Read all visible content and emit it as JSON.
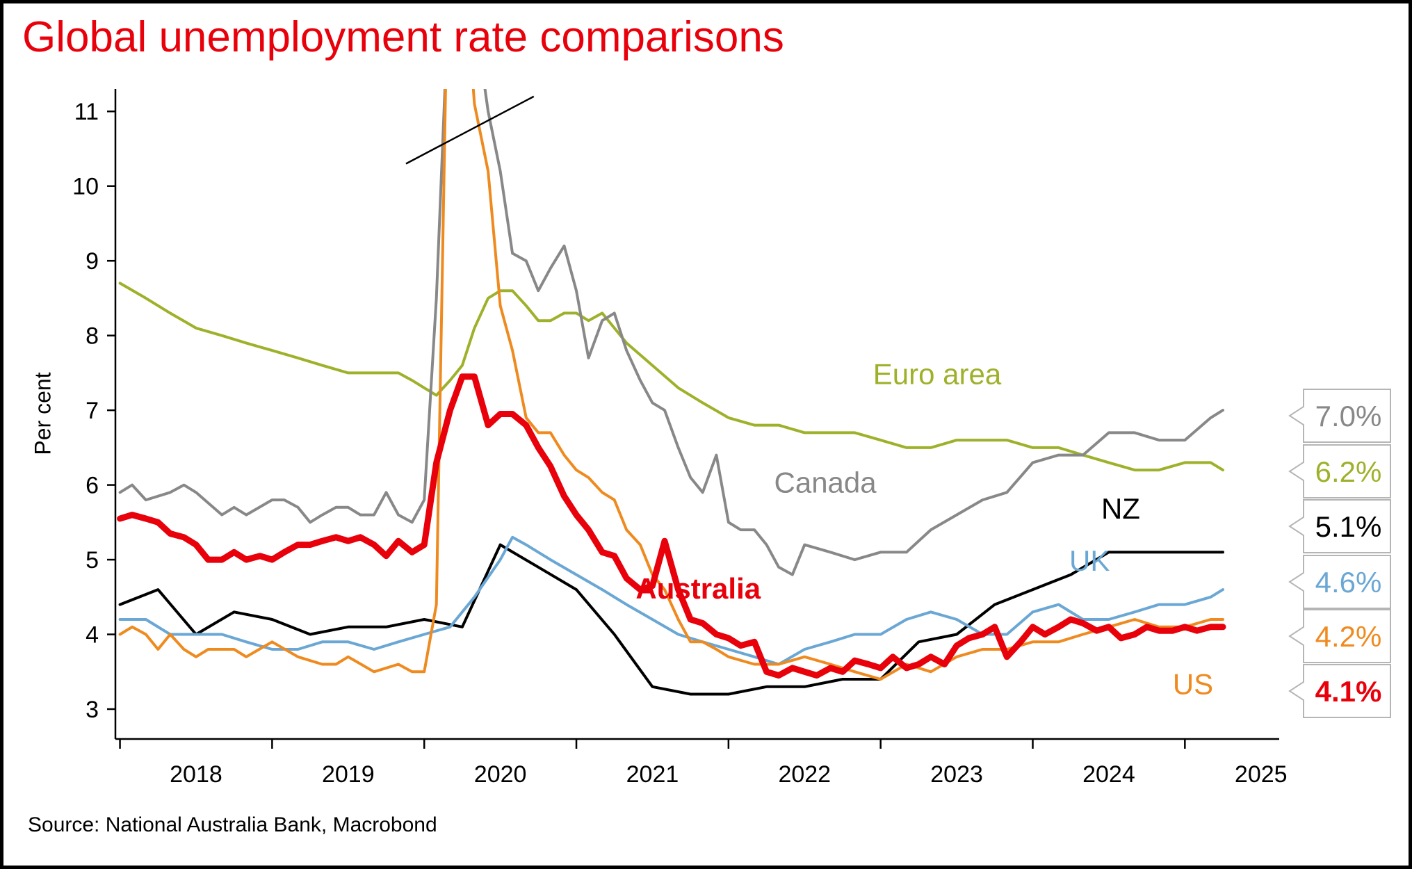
{
  "title": "Global unemployment rate comparisons",
  "source": "Source: National Australia Bank, Macrobond",
  "chart_data": {
    "type": "line",
    "title": "Global unemployment rate comparisons",
    "xlabel": "",
    "ylabel": "Per cent",
    "ylim": [
      2.6,
      11.3
    ],
    "xlim": [
      2017.97,
      2025.62
    ],
    "yticks": [
      3,
      4,
      5,
      6,
      7,
      8,
      9,
      10,
      11
    ],
    "xtick_labels": [
      "2018",
      "2019",
      "2020",
      "2021",
      "2022",
      "2023",
      "2024",
      "2025"
    ],
    "axis_break": "y-axis truncated above 11",
    "grid": false,
    "legend": "none (series labelled directly; latest values in boxes on right)",
    "series": [
      {
        "name": "Euro area",
        "color": "#9fb12a",
        "end_label": "6.2%",
        "x": [
          2018.0,
          2018.17,
          2018.33,
          2018.5,
          2018.67,
          2018.83,
          2019.0,
          2019.17,
          2019.33,
          2019.5,
          2019.67,
          2019.83,
          2019.92,
          2020.0,
          2020.08,
          2020.17,
          2020.25,
          2020.33,
          2020.42,
          2020.5,
          2020.58,
          2020.67,
          2020.75,
          2020.83,
          2020.92,
          2021.0,
          2021.08,
          2021.17,
          2021.25,
          2021.33,
          2021.5,
          2021.67,
          2021.83,
          2022.0,
          2022.17,
          2022.33,
          2022.5,
          2022.67,
          2022.83,
          2023.0,
          2023.17,
          2023.33,
          2023.5,
          2023.67,
          2023.83,
          2024.0,
          2024.17,
          2024.33,
          2024.5,
          2024.67,
          2024.83,
          2025.0,
          2025.17,
          2025.25
        ],
        "values": [
          8.7,
          8.5,
          8.3,
          8.1,
          8.0,
          7.9,
          7.8,
          7.7,
          7.6,
          7.5,
          7.5,
          7.5,
          7.4,
          7.3,
          7.2,
          7.4,
          7.6,
          8.1,
          8.5,
          8.6,
          8.6,
          8.4,
          8.2,
          8.2,
          8.3,
          8.3,
          8.2,
          8.3,
          8.1,
          7.9,
          7.6,
          7.3,
          7.1,
          6.9,
          6.8,
          6.8,
          6.7,
          6.7,
          6.7,
          6.6,
          6.5,
          6.5,
          6.6,
          6.6,
          6.6,
          6.5,
          6.5,
          6.4,
          6.3,
          6.2,
          6.2,
          6.3,
          6.3,
          6.2
        ]
      },
      {
        "name": "Canada",
        "color": "#888888",
        "end_label": "7.0%",
        "x": [
          2018.0,
          2018.08,
          2018.17,
          2018.33,
          2018.42,
          2018.5,
          2018.67,
          2018.75,
          2018.83,
          2019.0,
          2019.08,
          2019.17,
          2019.25,
          2019.33,
          2019.42,
          2019.5,
          2019.58,
          2019.67,
          2019.75,
          2019.83,
          2019.92,
          2020.0,
          2020.08,
          2020.17,
          2020.25,
          2020.33,
          2020.42,
          2020.5,
          2020.58,
          2020.67,
          2020.75,
          2020.83,
          2020.92,
          2021.0,
          2021.08,
          2021.17,
          2021.25,
          2021.33,
          2021.42,
          2021.5,
          2021.58,
          2021.67,
          2021.75,
          2021.83,
          2021.92,
          2022.0,
          2022.08,
          2022.17,
          2022.25,
          2022.33,
          2022.42,
          2022.5,
          2022.67,
          2022.83,
          2023.0,
          2023.17,
          2023.33,
          2023.5,
          2023.67,
          2023.83,
          2024.0,
          2024.17,
          2024.33,
          2024.5,
          2024.67,
          2024.83,
          2025.0,
          2025.17,
          2025.25
        ],
        "values": [
          5.9,
          6.0,
          5.8,
          5.9,
          6.0,
          5.9,
          5.6,
          5.7,
          5.6,
          5.8,
          5.8,
          5.7,
          5.5,
          5.6,
          5.7,
          5.7,
          5.6,
          5.6,
          5.9,
          5.6,
          5.5,
          5.8,
          8.5,
          13.0,
          13.7,
          12.3,
          11.0,
          10.2,
          9.1,
          9.0,
          8.6,
          8.9,
          9.2,
          8.6,
          7.7,
          8.2,
          8.3,
          7.8,
          7.4,
          7.1,
          7.0,
          6.5,
          6.1,
          5.9,
          6.4,
          5.5,
          5.4,
          5.4,
          5.2,
          4.9,
          4.8,
          5.2,
          5.1,
          5.0,
          5.1,
          5.1,
          5.4,
          5.6,
          5.8,
          5.9,
          6.3,
          6.4,
          6.4,
          6.7,
          6.7,
          6.6,
          6.6,
          6.9,
          7.0
        ]
      },
      {
        "name": "NZ",
        "color": "#000000",
        "end_label": "5.1%",
        "x": [
          2018.0,
          2018.25,
          2018.5,
          2018.75,
          2019.0,
          2019.25,
          2019.5,
          2019.75,
          2020.0,
          2020.25,
          2020.5,
          2020.75,
          2021.0,
          2021.25,
          2021.5,
          2021.75,
          2022.0,
          2022.25,
          2022.5,
          2022.75,
          2023.0,
          2023.25,
          2023.5,
          2023.75,
          2024.0,
          2024.25,
          2024.5,
          2024.75,
          2025.0,
          2025.25
        ],
        "values": [
          4.4,
          4.6,
          4.0,
          4.3,
          4.2,
          4.0,
          4.1,
          4.1,
          4.2,
          4.1,
          5.2,
          4.9,
          4.6,
          4.0,
          3.3,
          3.2,
          3.2,
          3.3,
          3.3,
          3.4,
          3.4,
          3.9,
          4.0,
          4.4,
          4.6,
          4.8,
          5.1,
          5.1,
          5.1,
          5.1
        ]
      },
      {
        "name": "UK",
        "color": "#6aa7d4",
        "end_label": "4.6%",
        "x": [
          2018.0,
          2018.17,
          2018.33,
          2018.5,
          2018.67,
          2018.83,
          2019.0,
          2019.17,
          2019.33,
          2019.5,
          2019.67,
          2019.83,
          2020.0,
          2020.17,
          2020.33,
          2020.5,
          2020.58,
          2020.67,
          2020.83,
          2021.0,
          2021.17,
          2021.33,
          2021.5,
          2021.67,
          2021.83,
          2022.0,
          2022.17,
          2022.33,
          2022.5,
          2022.67,
          2022.83,
          2023.0,
          2023.17,
          2023.33,
          2023.5,
          2023.67,
          2023.83,
          2024.0,
          2024.17,
          2024.33,
          2024.5,
          2024.67,
          2024.83,
          2025.0,
          2025.17,
          2025.25
        ],
        "values": [
          4.2,
          4.2,
          4.0,
          4.0,
          4.0,
          3.9,
          3.8,
          3.8,
          3.9,
          3.9,
          3.8,
          3.9,
          4.0,
          4.1,
          4.5,
          5.0,
          5.3,
          5.2,
          5.0,
          4.8,
          4.6,
          4.4,
          4.2,
          4.0,
          3.9,
          3.8,
          3.7,
          3.6,
          3.8,
          3.9,
          4.0,
          4.0,
          4.2,
          4.3,
          4.2,
          4.0,
          4.0,
          4.3,
          4.4,
          4.2,
          4.2,
          4.3,
          4.4,
          4.4,
          4.5,
          4.6
        ]
      },
      {
        "name": "US",
        "color": "#ef8a1f",
        "end_label": "4.2%",
        "x": [
          2018.0,
          2018.08,
          2018.17,
          2018.25,
          2018.33,
          2018.42,
          2018.5,
          2018.58,
          2018.67,
          2018.75,
          2018.83,
          2019.0,
          2019.17,
          2019.33,
          2019.42,
          2019.5,
          2019.67,
          2019.83,
          2019.92,
          2020.0,
          2020.08,
          2020.17,
          2020.25,
          2020.33,
          2020.42,
          2020.5,
          2020.58,
          2020.67,
          2020.75,
          2020.83,
          2020.92,
          2021.0,
          2021.08,
          2021.17,
          2021.25,
          2021.33,
          2021.42,
          2021.5,
          2021.58,
          2021.67,
          2021.75,
          2021.83,
          2021.92,
          2022.0,
          2022.17,
          2022.33,
          2022.5,
          2022.67,
          2022.83,
          2023.0,
          2023.17,
          2023.33,
          2023.5,
          2023.67,
          2023.83,
          2024.0,
          2024.17,
          2024.33,
          2024.5,
          2024.67,
          2024.83,
          2025.0,
          2025.17,
          2025.25
        ],
        "values": [
          4.0,
          4.1,
          4.0,
          3.8,
          4.0,
          3.8,
          3.7,
          3.8,
          3.8,
          3.8,
          3.7,
          3.9,
          3.7,
          3.6,
          3.6,
          3.7,
          3.5,
          3.6,
          3.5,
          3.5,
          4.4,
          14.7,
          13.3,
          11.1,
          10.2,
          8.4,
          7.8,
          6.9,
          6.7,
          6.7,
          6.4,
          6.2,
          6.1,
          5.9,
          5.8,
          5.4,
          5.2,
          4.8,
          4.6,
          4.2,
          3.9,
          3.9,
          3.8,
          3.7,
          3.6,
          3.6,
          3.7,
          3.6,
          3.5,
          3.4,
          3.6,
          3.5,
          3.7,
          3.8,
          3.8,
          3.9,
          3.9,
          4.0,
          4.1,
          4.2,
          4.1,
          4.1,
          4.2,
          4.2
        ]
      },
      {
        "name": "Australia",
        "color": "#e8000b",
        "end_label": "4.1%",
        "x": [
          2018.0,
          2018.08,
          2018.17,
          2018.25,
          2018.33,
          2018.42,
          2018.5,
          2018.58,
          2018.67,
          2018.75,
          2018.83,
          2018.92,
          2019.0,
          2019.08,
          2019.17,
          2019.25,
          2019.33,
          2019.42,
          2019.5,
          2019.58,
          2019.67,
          2019.75,
          2019.83,
          2019.92,
          2020.0,
          2020.08,
          2020.17,
          2020.25,
          2020.33,
          2020.42,
          2020.5,
          2020.58,
          2020.67,
          2020.75,
          2020.83,
          2020.92,
          2021.0,
          2021.08,
          2021.17,
          2021.25,
          2021.33,
          2021.42,
          2021.5,
          2021.58,
          2021.67,
          2021.75,
          2021.83,
          2021.92,
          2022.0,
          2022.08,
          2022.17,
          2022.25,
          2022.33,
          2022.42,
          2022.5,
          2022.58,
          2022.67,
          2022.75,
          2022.83,
          2022.92,
          2023.0,
          2023.08,
          2023.17,
          2023.25,
          2023.33,
          2023.42,
          2023.5,
          2023.58,
          2023.67,
          2023.75,
          2023.83,
          2023.92,
          2024.0,
          2024.08,
          2024.17,
          2024.25,
          2024.33,
          2024.42,
          2024.5,
          2024.58,
          2024.67,
          2024.75,
          2024.83,
          2024.92,
          2025.0,
          2025.08,
          2025.17,
          2025.25
        ],
        "values": [
          5.55,
          5.6,
          5.55,
          5.5,
          5.35,
          5.3,
          5.2,
          5.0,
          5.0,
          5.1,
          5.0,
          5.05,
          5.0,
          5.1,
          5.2,
          5.2,
          5.25,
          5.3,
          5.25,
          5.3,
          5.2,
          5.05,
          5.25,
          5.1,
          5.2,
          6.3,
          7.0,
          7.45,
          7.45,
          6.8,
          6.95,
          6.95,
          6.8,
          6.5,
          6.25,
          5.85,
          5.6,
          5.4,
          5.1,
          5.05,
          4.75,
          4.6,
          4.65,
          5.25,
          4.6,
          4.2,
          4.15,
          4.0,
          3.95,
          3.85,
          3.9,
          3.5,
          3.45,
          3.55,
          3.5,
          3.45,
          3.55,
          3.5,
          3.65,
          3.6,
          3.55,
          3.7,
          3.55,
          3.6,
          3.7,
          3.6,
          3.85,
          3.95,
          4.0,
          4.1,
          3.7,
          3.9,
          4.1,
          4.0,
          4.1,
          4.2,
          4.15,
          4.05,
          4.1,
          3.95,
          4.0,
          4.1,
          4.05,
          4.05,
          4.1,
          4.05,
          4.1,
          4.1
        ]
      }
    ]
  }
}
